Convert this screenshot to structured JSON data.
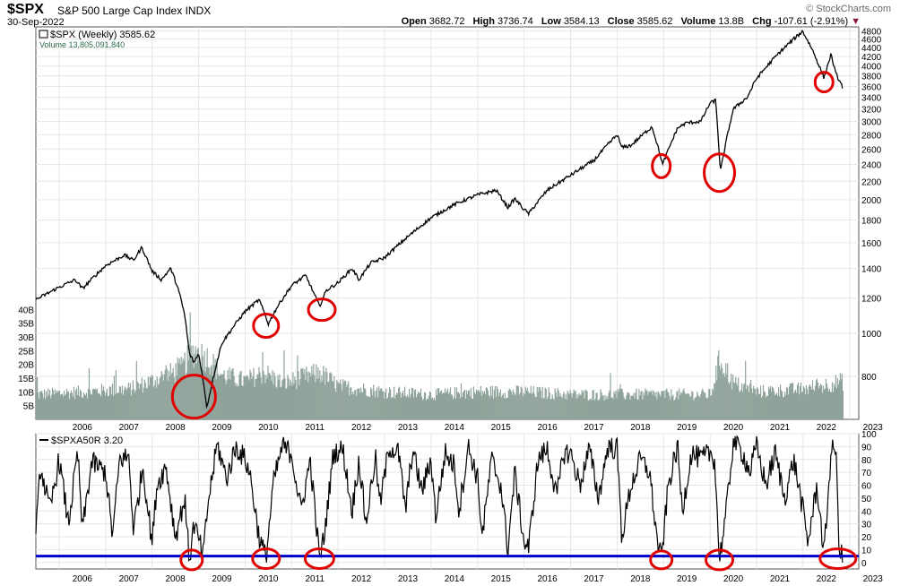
{
  "header": {
    "symbol": "$SPX",
    "name": "S&P 500 Large Cap Index",
    "exchange": "INDX",
    "date": "30-Sep-2022",
    "brand": "© StockCharts.com",
    "quote": {
      "open_label": "Open",
      "open": "3682.72",
      "high_label": "High",
      "high": "3736.74",
      "low_label": "Low",
      "low": "3584.13",
      "close_label": "Close",
      "close": "3585.62",
      "volume_label": "Volume",
      "volume": "13.8B",
      "chg_label": "Chg",
      "chg": "-107.61 (-2.91%)"
    }
  },
  "colors": {
    "price": "#000000",
    "volume": "#8fa39a",
    "highlight": "#e00000",
    "threshold_line": "#0000cc",
    "grid": "#e6e6e6",
    "border": "#555555"
  },
  "chart_data": [
    {
      "type": "line",
      "legend": [
        {
          "text": "$SPX (Weekly) 3585.62",
          "icon": "ohlc-icon"
        },
        {
          "text": "Volume 13,805,091,840",
          "color": "#2f6b4a"
        }
      ],
      "x_range": [
        2005.5,
        2022.85
      ],
      "y_scale": "log",
      "ylim": [
        640,
        4900
      ],
      "y_ticks": [
        800,
        1000,
        1200,
        1400,
        1600,
        1800,
        2000,
        2200,
        2400,
        2600,
        2800,
        3000,
        3200,
        3400,
        3600,
        3800,
        4000,
        4200,
        4400,
        4600,
        4800
      ],
      "volume_ticks": [
        {
          "value": 5,
          "label": "5B"
        },
        {
          "value": 10,
          "label": "10B"
        },
        {
          "value": 15,
          "label": "15B"
        },
        {
          "value": 20,
          "label": "20B"
        },
        {
          "value": 25,
          "label": "25B"
        },
        {
          "value": 30,
          "label": "30B"
        },
        {
          "value": 35,
          "label": "35B"
        },
        {
          "value": 40,
          "label": "40B"
        }
      ],
      "volume_ylim": [
        0,
        45
      ],
      "x_ticks": [
        "2006",
        "2007",
        "2008",
        "2009",
        "2010",
        "2011",
        "2012",
        "2013",
        "2014",
        "2015",
        "2016",
        "2017",
        "2018",
        "2019",
        "2020",
        "2021",
        "2022",
        "2023"
      ],
      "series": [
        {
          "values_kind": "price",
          "x": [
            2005.5,
            2006.0,
            2006.35,
            2006.5,
            2007.0,
            2007.4,
            2007.6,
            2007.78,
            2008.0,
            2008.2,
            2008.4,
            2008.55,
            2008.7,
            2008.8,
            2008.9,
            2009.0,
            2009.18,
            2009.5,
            2010.0,
            2010.3,
            2010.5,
            2010.7,
            2011.0,
            2011.3,
            2011.6,
            2011.75,
            2012.0,
            2012.3,
            2012.45,
            2012.7,
            2013.0,
            2013.5,
            2014.0,
            2014.5,
            2015.0,
            2015.4,
            2015.65,
            2015.8,
            2016.0,
            2016.1,
            2016.5,
            2017.0,
            2017.5,
            2018.0,
            2018.1,
            2018.3,
            2018.75,
            2018.98,
            2019.3,
            2019.5,
            2019.8,
            2020.0,
            2020.12,
            2020.22,
            2020.5,
            2020.8,
            2021.0,
            2021.5,
            2021.99,
            2022.2,
            2022.45,
            2022.6,
            2022.7,
            2022.85
          ],
          "values": [
            1190,
            1270,
            1320,
            1260,
            1420,
            1500,
            1460,
            1560,
            1380,
            1320,
            1400,
            1270,
            1100,
            900,
            860,
            900,
            680,
            950,
            1120,
            1190,
            1050,
            1150,
            1280,
            1350,
            1150,
            1250,
            1300,
            1400,
            1320,
            1440,
            1480,
            1650,
            1820,
            1950,
            2050,
            2100,
            1920,
            2010,
            1900,
            1860,
            2100,
            2270,
            2450,
            2800,
            2620,
            2650,
            2920,
            2400,
            2900,
            2980,
            3000,
            3300,
            3350,
            2300,
            3200,
            3400,
            3750,
            4300,
            4790,
            4350,
            3750,
            4250,
            3850,
            3585
          ]
        },
        {
          "values_kind": "volume_billions",
          "x": [
            2005.5,
            2006.5,
            2007.5,
            2008.0,
            2008.6,
            2008.9,
            2009.2,
            2009.5,
            2010.0,
            2010.4,
            2010.8,
            2011.6,
            2012.0,
            2013.0,
            2014.0,
            2015.0,
            2016.0,
            2017.0,
            2018.0,
            2019.0,
            2020.0,
            2020.2,
            2020.5,
            2021.0,
            2022.0,
            2022.85
          ],
          "values": [
            9,
            10,
            11,
            14,
            18,
            25,
            22,
            16,
            14,
            17,
            13,
            17,
            12,
            10,
            9,
            10,
            10,
            9,
            9,
            9,
            9,
            22,
            13,
            10,
            11,
            13.8
          ]
        }
      ],
      "annotations": [
        {
          "shape": "circle",
          "x": 2008.9,
          "y": 720
        },
        {
          "shape": "circle",
          "x": 2010.45,
          "y": 1040
        },
        {
          "shape": "circle",
          "x": 2011.65,
          "y": 1130
        },
        {
          "shape": "circle",
          "x": 2018.95,
          "y": 2380
        },
        {
          "shape": "circle",
          "x": 2020.2,
          "y": 2300
        },
        {
          "shape": "circle",
          "x": 2022.45,
          "y": 3680
        }
      ]
    },
    {
      "type": "line",
      "legend": [
        {
          "text": "$SPXA50R 3.20",
          "icon": "line-swatch-icon"
        }
      ],
      "x_range": [
        2005.5,
        2022.85
      ],
      "ylim": [
        -5,
        100
      ],
      "y_ticks": [
        0,
        10,
        20,
        30,
        40,
        50,
        60,
        70,
        80,
        90,
        100
      ],
      "x_ticks": [
        "2006",
        "2007",
        "2008",
        "2009",
        "2010",
        "2011",
        "2012",
        "2013",
        "2014",
        "2015",
        "2016",
        "2017",
        "2018",
        "2019",
        "2020",
        "2021",
        "2022",
        "2023"
      ],
      "threshold": 5,
      "series": [
        {
          "values_kind": "percent_above_50dma",
          "x": [
            2005.5,
            2005.6,
            2005.8,
            2006.0,
            2006.2,
            2006.4,
            2006.5,
            2006.7,
            2007.0,
            2007.15,
            2007.3,
            2007.5,
            2007.6,
            2007.8,
            2008.0,
            2008.1,
            2008.3,
            2008.5,
            2008.7,
            2008.8,
            2008.9,
            2009.1,
            2009.2,
            2009.4,
            2009.6,
            2009.8,
            2010.0,
            2010.1,
            2010.3,
            2010.45,
            2010.6,
            2010.8,
            2011.0,
            2011.2,
            2011.4,
            2011.6,
            2011.7,
            2011.9,
            2012.1,
            2012.3,
            2012.45,
            2012.6,
            2012.8,
            2012.9,
            2013.1,
            2013.3,
            2013.45,
            2013.6,
            2013.8,
            2014.0,
            2014.1,
            2014.3,
            2014.5,
            2014.6,
            2014.8,
            2015.0,
            2015.1,
            2015.3,
            2015.5,
            2015.65,
            2015.8,
            2016.0,
            2016.1,
            2016.3,
            2016.5,
            2016.7,
            2016.85,
            2017.0,
            2017.2,
            2017.4,
            2017.6,
            2017.8,
            2018.0,
            2018.1,
            2018.3,
            2018.5,
            2018.7,
            2018.85,
            2018.95,
            2019.1,
            2019.3,
            2019.4,
            2019.6,
            2019.8,
            2020.0,
            2020.1,
            2020.2,
            2020.35,
            2020.5,
            2020.7,
            2020.85,
            2021.0,
            2021.2,
            2021.4,
            2021.6,
            2021.8,
            2022.0,
            2022.1,
            2022.3,
            2022.45,
            2022.6,
            2022.7,
            2022.78,
            2022.85
          ],
          "values": [
            20,
            75,
            40,
            80,
            30,
            85,
            25,
            78,
            70,
            20,
            80,
            82,
            25,
            75,
            15,
            60,
            75,
            20,
            50,
            2,
            30,
            5,
            45,
            92,
            65,
            90,
            80,
            70,
            20,
            3,
            60,
            90,
            85,
            40,
            80,
            3,
            20,
            85,
            88,
            40,
            80,
            30,
            82,
            45,
            90,
            85,
            40,
            88,
            55,
            80,
            35,
            85,
            75,
            40,
            90,
            65,
            20,
            80,
            60,
            10,
            70,
            15,
            12,
            80,
            88,
            50,
            85,
            85,
            60,
            88,
            50,
            90,
            88,
            20,
            60,
            80,
            70,
            20,
            2,
            60,
            90,
            40,
            85,
            80,
            85,
            80,
            2,
            40,
            95,
            85,
            70,
            90,
            60,
            85,
            50,
            80,
            40,
            15,
            60,
            5,
            85,
            90,
            10,
            3.2
          ]
        }
      ],
      "annotations": [
        {
          "shape": "circle",
          "x": 2008.85,
          "y": 2
        },
        {
          "shape": "circle",
          "x": 2010.45,
          "y": 3
        },
        {
          "shape": "circle",
          "x": 2011.6,
          "y": 3
        },
        {
          "shape": "circle",
          "x": 2018.95,
          "y": 2
        },
        {
          "shape": "circle",
          "x": 2020.2,
          "y": 2
        },
        {
          "shape": "circle",
          "x": 2022.75,
          "y": 3
        }
      ]
    }
  ]
}
